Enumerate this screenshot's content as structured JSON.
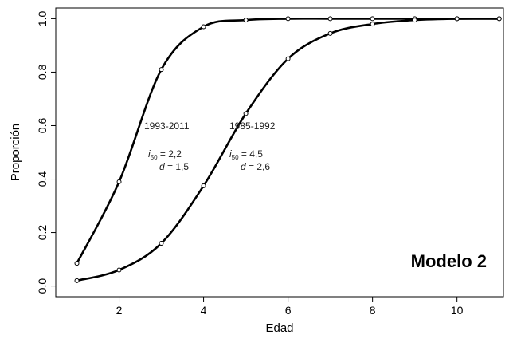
{
  "chart_data": {
    "type": "line",
    "x_label": "Edad",
    "y_label": "Proporción",
    "x": [
      1,
      2,
      3,
      4,
      5,
      6,
      7,
      8,
      9,
      10,
      11
    ],
    "series": [
      {
        "name": "1993-2011",
        "color": "#000000",
        "values": [
          0.085,
          0.39,
          0.81,
          0.97,
          0.995,
          1.0,
          1.0,
          1.0,
          1.0,
          1.0,
          1.0
        ]
      },
      {
        "name": "1985-1992",
        "color": "#000000",
        "values": [
          0.02,
          0.06,
          0.16,
          0.375,
          0.645,
          0.85,
          0.945,
          0.98,
          0.995,
          1.0,
          1.0
        ]
      }
    ],
    "annotations": [
      {
        "lines": [
          {
            "symbol": "i",
            "sub": "50",
            "text": " = 2,2"
          },
          {
            "symbol": "d",
            "text": " = 1,5"
          }
        ]
      },
      {
        "lines": [
          {
            "symbol": "i",
            "sub": "50",
            "text": " = 4,5"
          },
          {
            "symbol": "d",
            "text": " = 2,6"
          }
        ]
      }
    ],
    "model_label": "Modelo 2",
    "xlim": [
      0.5,
      11.1
    ],
    "ylim": [
      -0.04,
      1.04
    ],
    "xticks": [
      2,
      4,
      6,
      8,
      10
    ],
    "yticks": [
      {
        "value": 0,
        "label": "0.0"
      },
      0.2,
      0.4,
      0.6,
      0.8,
      {
        "value": 1,
        "label": "1.0"
      }
    ]
  }
}
